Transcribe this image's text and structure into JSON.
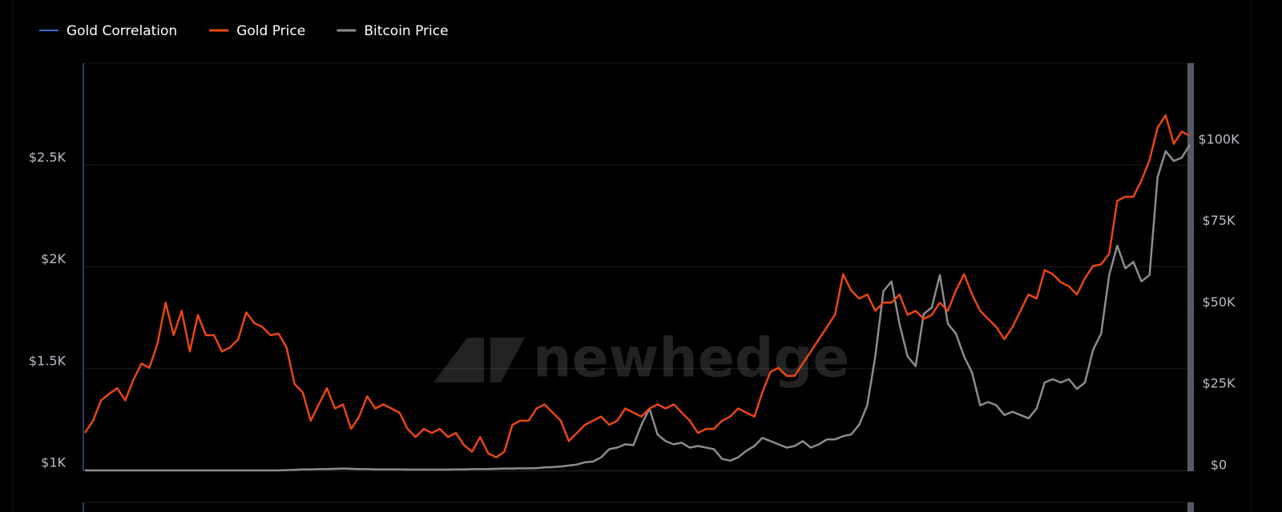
{
  "chart_data": {
    "type": "line",
    "watermark": "newhedge",
    "ylim": [
      1000,
      3000
    ],
    "yticks": [
      {
        "value": 1000,
        "label": "$1K"
      },
      {
        "value": 1500,
        "label": "$1.5K"
      },
      {
        "value": 2000,
        "label": "$2K"
      },
      {
        "value": 2500,
        "label": "$2.5K"
      }
    ],
    "y2lim": [
      0,
      125000
    ],
    "y2ticks": [
      {
        "value": 0,
        "label": "$0"
      },
      {
        "value": 25000,
        "label": "$25K"
      },
      {
        "value": 50000,
        "label": "$50K"
      },
      {
        "value": 75000,
        "label": "$75K"
      },
      {
        "value": 100000,
        "label": "$100K"
      }
    ],
    "grid": true,
    "series": [
      {
        "name": "Gold Correlation",
        "color": "#3b6fd6"
      },
      {
        "name": "Gold Price",
        "color": "#e8470f",
        "values": [
          1184,
          1244,
          1344,
          1376,
          1404,
          1344,
          1444,
          1524,
          1504,
          1624,
          1824,
          1664,
          1784,
          1584,
          1764,
          1664,
          1664,
          1584,
          1604,
          1644,
          1776,
          1724,
          1704,
          1664,
          1672,
          1604,
          1424,
          1384,
          1244,
          1324,
          1404,
          1304,
          1324,
          1204,
          1264,
          1364,
          1304,
          1324,
          1304,
          1284,
          1204,
          1164,
          1204,
          1184,
          1204,
          1164,
          1184,
          1124,
          1092,
          1164,
          1084,
          1064,
          1092,
          1224,
          1244,
          1244,
          1304,
          1324,
          1284,
          1244,
          1144,
          1184,
          1224,
          1244,
          1264,
          1224,
          1244,
          1304,
          1284,
          1264,
          1304,
          1324,
          1304,
          1324,
          1284,
          1244,
          1184,
          1204,
          1204,
          1244,
          1264,
          1304,
          1284,
          1264,
          1384,
          1484,
          1504,
          1464,
          1464,
          1524,
          1584,
          1644,
          1704,
          1764,
          1964,
          1884,
          1844,
          1864,
          1784,
          1824,
          1824,
          1864,
          1764,
          1784,
          1744,
          1764,
          1824,
          1784,
          1884,
          1964,
          1864,
          1784,
          1744,
          1704,
          1644,
          1704,
          1784,
          1864,
          1844,
          1984,
          1964,
          1924,
          1904,
          1864,
          1944,
          2004,
          2012,
          2064,
          2324,
          2344,
          2344,
          2424,
          2524,
          2684,
          2744,
          2604,
          2664,
          2644
        ]
      },
      {
        "name": "Bitcoin Price",
        "color": "#8c8c8c",
        "axis": "y2",
        "values": [
          0,
          0,
          0,
          0,
          0,
          0,
          0,
          0,
          0,
          0,
          0,
          0,
          0,
          0,
          0,
          0,
          0,
          0,
          0,
          0,
          0,
          0,
          0,
          0,
          0,
          100,
          200,
          300,
          300,
          400,
          400,
          500,
          600,
          500,
          400,
          400,
          300,
          300,
          300,
          300,
          250,
          250,
          250,
          250,
          250,
          250,
          300,
          300,
          400,
          400,
          450,
          500,
          600,
          600,
          650,
          650,
          700,
          900,
          1000,
          1200,
          1500,
          1800,
          2500,
          2700,
          4000,
          6500,
          7000,
          8000,
          7750,
          14000,
          19000,
          11000,
          9000,
          8000,
          8500,
          7000,
          7500,
          7000,
          6500,
          3500,
          3000,
          4000,
          6000,
          7500,
          10000,
          9000,
          8000,
          7000,
          7500,
          9000,
          7000,
          8000,
          9500,
          9500,
          10500,
          11000,
          14000,
          20000,
          35000,
          55000,
          58000,
          45000,
          35000,
          32000,
          48000,
          50000,
          60000,
          45000,
          42000,
          35000,
          30000,
          20000,
          21000,
          20000,
          17000,
          18000,
          17000,
          16000,
          19000,
          27000,
          28000,
          27000,
          28000,
          25000,
          27000,
          37000,
          42000,
          60000,
          69000,
          62000,
          64000,
          58000,
          60000,
          90000,
          98000,
          95000,
          96000,
          100000
        ]
      }
    ]
  }
}
